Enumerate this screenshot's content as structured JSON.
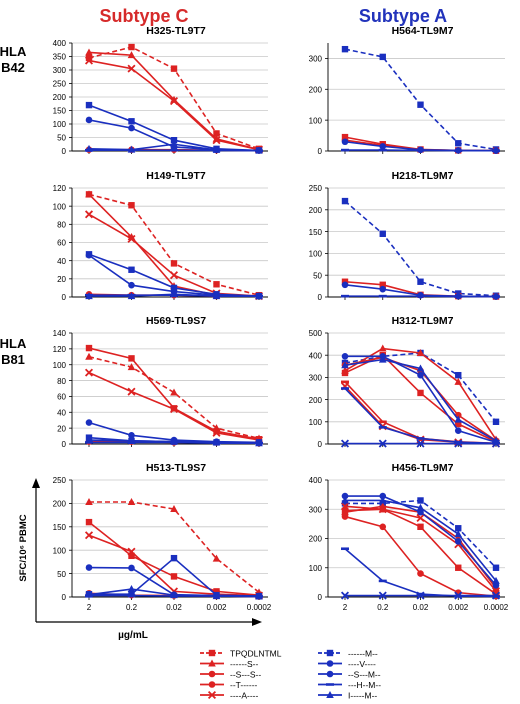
{
  "header": {
    "col_left": "Subtype C",
    "col_right": "Subtype A",
    "col_left_color": "#d62a2a",
    "col_right_color": "#2233bb"
  },
  "rows": [
    {
      "label_line1": "HLA",
      "label_line2": "B42"
    },
    {
      "label_line1": "HLA",
      "label_line2": "B81"
    }
  ],
  "axis": {
    "ylabel": "SFC/10⁶ PBMC",
    "xlabel": "µg/mL"
  },
  "colors": {
    "red": "#dd2222",
    "blue": "#1a2fbf",
    "grid": "#c8c8c8"
  },
  "chart_data": [
    {
      "type": "line",
      "title": "H325-TL9T7",
      "x": [
        "2",
        "0.2",
        "0.02",
        "0.002",
        "0.0002"
      ],
      "ylim": [
        0,
        400
      ],
      "yticks": [
        0,
        50,
        100,
        150,
        200,
        250,
        300,
        350,
        400
      ],
      "series": [
        {
          "color": "red",
          "marker": "square",
          "dashed": true,
          "values": [
            345,
            385,
            305,
            65,
            8
          ]
        },
        {
          "color": "red",
          "marker": "triangle",
          "dashed": false,
          "values": [
            365,
            355,
            190,
            45,
            5
          ]
        },
        {
          "color": "red",
          "marker": "cross",
          "dashed": false,
          "values": [
            335,
            305,
            185,
            40,
            5
          ]
        },
        {
          "color": "red",
          "marker": "circle",
          "dashed": false,
          "values": [
            5,
            5,
            5,
            3,
            2
          ]
        },
        {
          "color": "blue",
          "marker": "square",
          "dashed": false,
          "values": [
            170,
            110,
            40,
            8,
            2
          ]
        },
        {
          "color": "blue",
          "marker": "circle",
          "dashed": false,
          "values": [
            115,
            85,
            15,
            5,
            2
          ]
        },
        {
          "color": "blue",
          "marker": "triangle",
          "dashed": false,
          "values": [
            8,
            5,
            25,
            4,
            2
          ]
        },
        {
          "color": "blue",
          "marker": "dash",
          "dashed": false,
          "values": [
            3,
            3,
            3,
            2,
            1
          ]
        }
      ]
    },
    {
      "type": "line",
      "title": "H564-TL9M7",
      "x": [
        "2",
        "0.2",
        "0.02",
        "0.002",
        "0.0002"
      ],
      "ylim": [
        0,
        350
      ],
      "yticks": [
        0,
        100,
        200,
        300
      ],
      "series": [
        {
          "color": "blue",
          "marker": "square",
          "dashed": true,
          "values": [
            330,
            305,
            150,
            25,
            5
          ]
        },
        {
          "color": "red",
          "marker": "square",
          "dashed": false,
          "values": [
            45,
            22,
            5,
            2,
            1
          ]
        },
        {
          "color": "red",
          "marker": "circle",
          "dashed": false,
          "values": [
            35,
            18,
            4,
            2,
            1
          ]
        },
        {
          "color": "blue",
          "marker": "circle",
          "dashed": false,
          "values": [
            30,
            15,
            4,
            2,
            1
          ]
        },
        {
          "color": "blue",
          "marker": "dash",
          "dashed": false,
          "values": [
            3,
            3,
            2,
            1,
            1
          ]
        }
      ]
    },
    {
      "type": "line",
      "title": "H149-TL9T7",
      "x": [
        "2",
        "0.2",
        "0.02",
        "0.002",
        "0.0002"
      ],
      "ylim": [
        0,
        120
      ],
      "yticks": [
        0,
        20,
        40,
        60,
        80,
        100,
        120
      ],
      "series": [
        {
          "color": "red",
          "marker": "square",
          "dashed": true,
          "values": [
            113,
            101,
            37,
            14,
            2
          ]
        },
        {
          "color": "red",
          "marker": "triangle",
          "dashed": false,
          "values": [
            113,
            66,
            12,
            2,
            1
          ]
        },
        {
          "color": "red",
          "marker": "cross",
          "dashed": false,
          "values": [
            91,
            64,
            24,
            4,
            1
          ]
        },
        {
          "color": "red",
          "marker": "circle",
          "dashed": false,
          "values": [
            3,
            2,
            2,
            1,
            1
          ]
        },
        {
          "color": "blue",
          "marker": "square",
          "dashed": false,
          "values": [
            47,
            30,
            10,
            3,
            1
          ]
        },
        {
          "color": "blue",
          "marker": "circle",
          "dashed": false,
          "values": [
            46,
            13,
            6,
            2,
            1
          ]
        },
        {
          "color": "blue",
          "marker": "dash",
          "dashed": false,
          "values": [
            2,
            2,
            2,
            1,
            1
          ]
        },
        {
          "color": "blue",
          "marker": "triangle",
          "dashed": false,
          "values": [
            1,
            1,
            3,
            1,
            1
          ]
        }
      ]
    },
    {
      "type": "line",
      "title": "H218-TL9M7",
      "x": [
        "2",
        "0.2",
        "0.02",
        "0.002",
        "0.0002"
      ],
      "ylim": [
        0,
        250
      ],
      "yticks": [
        0,
        50,
        100,
        150,
        200,
        250
      ],
      "series": [
        {
          "color": "blue",
          "marker": "square",
          "dashed": true,
          "values": [
            220,
            145,
            35,
            8,
            3
          ]
        },
        {
          "color": "red",
          "marker": "square",
          "dashed": false,
          "values": [
            35,
            28,
            5,
            2,
            1
          ]
        },
        {
          "color": "blue",
          "marker": "circle",
          "dashed": false,
          "values": [
            28,
            18,
            4,
            2,
            1
          ]
        },
        {
          "color": "blue",
          "marker": "dash",
          "dashed": false,
          "values": [
            2,
            2,
            2,
            1,
            1
          ]
        }
      ]
    },
    {
      "type": "line",
      "title": "H569-TL9S7",
      "x": [
        "2",
        "0.2",
        "0.02",
        "0.002",
        "0.0002"
      ],
      "ylim": [
        0,
        140
      ],
      "yticks": [
        0,
        20,
        40,
        60,
        80,
        100,
        120,
        140
      ],
      "series": [
        {
          "color": "red",
          "marker": "triangle",
          "dashed": true,
          "values": [
            110,
            97,
            65,
            20,
            7
          ]
        },
        {
          "color": "red",
          "marker": "square",
          "dashed": false,
          "values": [
            121,
            108,
            45,
            16,
            6
          ]
        },
        {
          "color": "red",
          "marker": "cross",
          "dashed": false,
          "values": [
            90,
            66,
            44,
            14,
            5
          ]
        },
        {
          "color": "red",
          "marker": "circle",
          "dashed": false,
          "values": [
            3,
            3,
            2,
            2,
            1
          ]
        },
        {
          "color": "blue",
          "marker": "circle",
          "dashed": false,
          "values": [
            27,
            11,
            5,
            3,
            2
          ]
        },
        {
          "color": "blue",
          "marker": "square",
          "dashed": false,
          "values": [
            8,
            4,
            3,
            2,
            2
          ]
        },
        {
          "color": "blue",
          "marker": "triangle",
          "dashed": false,
          "values": [
            5,
            4,
            3,
            2,
            1
          ]
        },
        {
          "color": "blue",
          "marker": "dash",
          "dashed": false,
          "values": [
            2,
            2,
            2,
            1,
            1
          ]
        }
      ]
    },
    {
      "type": "line",
      "title": "H312-TL9M7",
      "x": [
        "2",
        "0.2",
        "0.02",
        "0.002",
        "0.0002"
      ],
      "ylim": [
        0,
        500
      ],
      "yticks": [
        0,
        100,
        200,
        300,
        400,
        500
      ],
      "series": [
        {
          "color": "blue",
          "marker": "square",
          "dashed": true,
          "values": [
            365,
            395,
            410,
            310,
            100
          ]
        },
        {
          "color": "red",
          "marker": "triangle",
          "dashed": false,
          "values": [
            330,
            430,
            410,
            280,
            20
          ]
        },
        {
          "color": "red",
          "marker": "circle",
          "dashed": false,
          "values": [
            355,
            390,
            330,
            130,
            15
          ]
        },
        {
          "color": "red",
          "marker": "square",
          "dashed": false,
          "values": [
            320,
            400,
            230,
            90,
            10
          ]
        },
        {
          "color": "red",
          "marker": "dash",
          "dashed": false,
          "values": [
            280,
            100,
            25,
            10,
            3
          ]
        },
        {
          "color": "red",
          "marker": "cross",
          "dashed": false,
          "values": [
            260,
            80,
            20,
            8,
            2
          ]
        },
        {
          "color": "blue",
          "marker": "circle",
          "dashed": false,
          "values": [
            395,
            395,
            310,
            60,
            8
          ]
        },
        {
          "color": "blue",
          "marker": "triangle",
          "dashed": false,
          "values": [
            355,
            380,
            340,
            110,
            15
          ]
        },
        {
          "color": "blue",
          "marker": "dash",
          "dashed": false,
          "values": [
            250,
            75,
            25,
            8,
            3
          ]
        },
        {
          "color": "blue",
          "marker": "cross",
          "dashed": false,
          "values": [
            2,
            2,
            2,
            2,
            2
          ]
        }
      ]
    },
    {
      "type": "line",
      "title": "H513-TL9S7",
      "x": [
        "2",
        "0.2",
        "0.02",
        "0.002",
        "0.0002"
      ],
      "ylim": [
        0,
        250
      ],
      "yticks": [
        0,
        50,
        100,
        150,
        200,
        250
      ],
      "series": [
        {
          "color": "red",
          "marker": "triangle",
          "dashed": true,
          "values": [
            203,
            203,
            188,
            82,
            10
          ]
        },
        {
          "color": "red",
          "marker": "square",
          "dashed": false,
          "values": [
            160,
            88,
            44,
            12,
            4
          ]
        },
        {
          "color": "red",
          "marker": "cross",
          "dashed": false,
          "values": [
            132,
            97,
            12,
            6,
            3
          ]
        },
        {
          "color": "red",
          "marker": "circle",
          "dashed": false,
          "values": [
            8,
            4,
            3,
            2,
            1
          ]
        },
        {
          "color": "blue",
          "marker": "circle",
          "dashed": false,
          "values": [
            63,
            62,
            5,
            3,
            2
          ]
        },
        {
          "color": "blue",
          "marker": "square",
          "dashed": false,
          "values": [
            6,
            6,
            83,
            4,
            2
          ]
        },
        {
          "color": "blue",
          "marker": "triangle",
          "dashed": false,
          "values": [
            5,
            17,
            4,
            2,
            1
          ]
        },
        {
          "color": "blue",
          "marker": "dash",
          "dashed": false,
          "values": [
            3,
            3,
            2,
            2,
            1
          ]
        }
      ]
    },
    {
      "type": "line",
      "title": "H456-TL9M7",
      "x": [
        "2",
        "0.2",
        "0.02",
        "0.002",
        "0.0002"
      ],
      "ylim": [
        0,
        400
      ],
      "yticks": [
        0,
        100,
        200,
        300,
        400
      ],
      "series": [
        {
          "color": "blue",
          "marker": "square",
          "dashed": true,
          "values": [
            320,
            320,
            330,
            235,
            100
          ]
        },
        {
          "color": "red",
          "marker": "triangle",
          "dashed": false,
          "values": [
            290,
            310,
            290,
            200,
            30
          ]
        },
        {
          "color": "red",
          "marker": "square",
          "dashed": false,
          "values": [
            295,
            300,
            240,
            100,
            10
          ]
        },
        {
          "color": "red",
          "marker": "circle",
          "dashed": false,
          "values": [
            275,
            240,
            80,
            15,
            3
          ]
        },
        {
          "color": "red",
          "marker": "cross",
          "dashed": false,
          "values": [
            310,
            300,
            270,
            180,
            20
          ]
        },
        {
          "color": "blue",
          "marker": "circle",
          "dashed": false,
          "values": [
            345,
            345,
            290,
            190,
            40
          ]
        },
        {
          "color": "blue",
          "marker": "triangle",
          "dashed": false,
          "values": [
            330,
            330,
            305,
            215,
            55
          ]
        },
        {
          "color": "blue",
          "marker": "dash",
          "dashed": false,
          "values": [
            165,
            55,
            10,
            3,
            2
          ]
        },
        {
          "color": "blue",
          "marker": "cross",
          "dashed": false,
          "values": [
            5,
            5,
            5,
            5,
            5
          ]
        }
      ]
    }
  ],
  "legend": {
    "left": [
      {
        "color": "red",
        "marker": "square",
        "dashed": true,
        "label": "TPQDLNTML"
      },
      {
        "color": "red",
        "marker": "triangle",
        "dashed": false,
        "label": "------S--"
      },
      {
        "color": "red",
        "marker": "circle",
        "dashed": false,
        "label": "--S---S--"
      },
      {
        "color": "red",
        "marker": "circle",
        "dashed": false,
        "label": "--T------"
      },
      {
        "color": "red",
        "marker": "cross",
        "dashed": false,
        "label": "----A----"
      }
    ],
    "right": [
      {
        "color": "blue",
        "marker": "square",
        "dashed": true,
        "label": "------M--"
      },
      {
        "color": "blue",
        "marker": "circle",
        "dashed": false,
        "label": "----V----"
      },
      {
        "color": "blue",
        "marker": "circle",
        "dashed": false,
        "label": "--S---M--"
      },
      {
        "color": "blue",
        "marker": "dash",
        "dashed": false,
        "label": "---H--M--"
      },
      {
        "color": "blue",
        "marker": "triangle",
        "dashed": false,
        "label": "I-----M--"
      }
    ]
  }
}
